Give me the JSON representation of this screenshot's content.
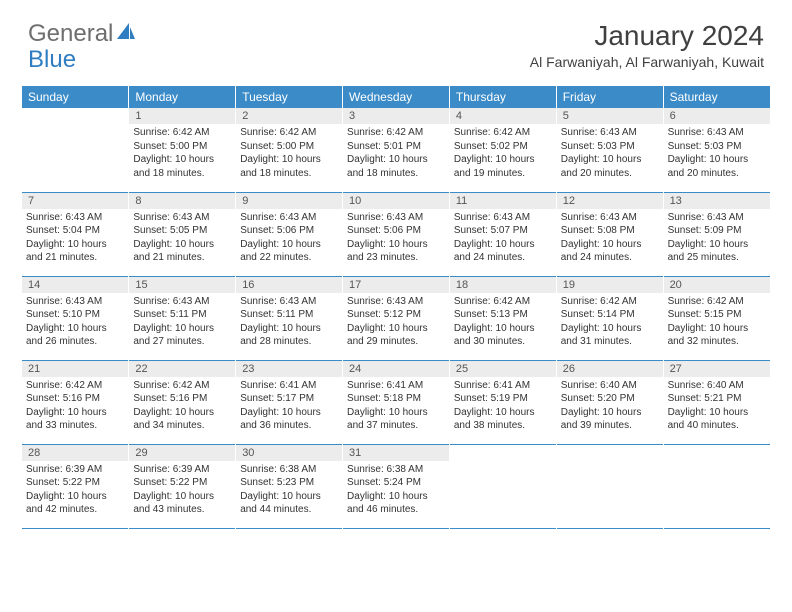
{
  "logo": {
    "part1": "General",
    "part2": "Blue"
  },
  "title": "January 2024",
  "location": "Al Farwaniyah, Al Farwaniyah, Kuwait",
  "colors": {
    "header_bg": "#3b8bc8",
    "header_text": "#ffffff",
    "daynum_bg": "#ececec",
    "daynum_text": "#555555",
    "body_text": "#333333",
    "row_border": "#3b8bc8",
    "logo_gray": "#6e6e6e",
    "logo_blue": "#2f7ec2",
    "title_color": "#404040"
  },
  "weekdays": [
    "Sunday",
    "Monday",
    "Tuesday",
    "Wednesday",
    "Thursday",
    "Friday",
    "Saturday"
  ],
  "weeks": [
    [
      null,
      {
        "n": "1",
        "sr": "6:42 AM",
        "ss": "5:00 PM",
        "dl": "10 hours and 18 minutes."
      },
      {
        "n": "2",
        "sr": "6:42 AM",
        "ss": "5:00 PM",
        "dl": "10 hours and 18 minutes."
      },
      {
        "n": "3",
        "sr": "6:42 AM",
        "ss": "5:01 PM",
        "dl": "10 hours and 18 minutes."
      },
      {
        "n": "4",
        "sr": "6:42 AM",
        "ss": "5:02 PM",
        "dl": "10 hours and 19 minutes."
      },
      {
        "n": "5",
        "sr": "6:43 AM",
        "ss": "5:03 PM",
        "dl": "10 hours and 20 minutes."
      },
      {
        "n": "6",
        "sr": "6:43 AM",
        "ss": "5:03 PM",
        "dl": "10 hours and 20 minutes."
      }
    ],
    [
      {
        "n": "7",
        "sr": "6:43 AM",
        "ss": "5:04 PM",
        "dl": "10 hours and 21 minutes."
      },
      {
        "n": "8",
        "sr": "6:43 AM",
        "ss": "5:05 PM",
        "dl": "10 hours and 21 minutes."
      },
      {
        "n": "9",
        "sr": "6:43 AM",
        "ss": "5:06 PM",
        "dl": "10 hours and 22 minutes."
      },
      {
        "n": "10",
        "sr": "6:43 AM",
        "ss": "5:06 PM",
        "dl": "10 hours and 23 minutes."
      },
      {
        "n": "11",
        "sr": "6:43 AM",
        "ss": "5:07 PM",
        "dl": "10 hours and 24 minutes."
      },
      {
        "n": "12",
        "sr": "6:43 AM",
        "ss": "5:08 PM",
        "dl": "10 hours and 24 minutes."
      },
      {
        "n": "13",
        "sr": "6:43 AM",
        "ss": "5:09 PM",
        "dl": "10 hours and 25 minutes."
      }
    ],
    [
      {
        "n": "14",
        "sr": "6:43 AM",
        "ss": "5:10 PM",
        "dl": "10 hours and 26 minutes."
      },
      {
        "n": "15",
        "sr": "6:43 AM",
        "ss": "5:11 PM",
        "dl": "10 hours and 27 minutes."
      },
      {
        "n": "16",
        "sr": "6:43 AM",
        "ss": "5:11 PM",
        "dl": "10 hours and 28 minutes."
      },
      {
        "n": "17",
        "sr": "6:43 AM",
        "ss": "5:12 PM",
        "dl": "10 hours and 29 minutes."
      },
      {
        "n": "18",
        "sr": "6:42 AM",
        "ss": "5:13 PM",
        "dl": "10 hours and 30 minutes."
      },
      {
        "n": "19",
        "sr": "6:42 AM",
        "ss": "5:14 PM",
        "dl": "10 hours and 31 minutes."
      },
      {
        "n": "20",
        "sr": "6:42 AM",
        "ss": "5:15 PM",
        "dl": "10 hours and 32 minutes."
      }
    ],
    [
      {
        "n": "21",
        "sr": "6:42 AM",
        "ss": "5:16 PM",
        "dl": "10 hours and 33 minutes."
      },
      {
        "n": "22",
        "sr": "6:42 AM",
        "ss": "5:16 PM",
        "dl": "10 hours and 34 minutes."
      },
      {
        "n": "23",
        "sr": "6:41 AM",
        "ss": "5:17 PM",
        "dl": "10 hours and 36 minutes."
      },
      {
        "n": "24",
        "sr": "6:41 AM",
        "ss": "5:18 PM",
        "dl": "10 hours and 37 minutes."
      },
      {
        "n": "25",
        "sr": "6:41 AM",
        "ss": "5:19 PM",
        "dl": "10 hours and 38 minutes."
      },
      {
        "n": "26",
        "sr": "6:40 AM",
        "ss": "5:20 PM",
        "dl": "10 hours and 39 minutes."
      },
      {
        "n": "27",
        "sr": "6:40 AM",
        "ss": "5:21 PM",
        "dl": "10 hours and 40 minutes."
      }
    ],
    [
      {
        "n": "28",
        "sr": "6:39 AM",
        "ss": "5:22 PM",
        "dl": "10 hours and 42 minutes."
      },
      {
        "n": "29",
        "sr": "6:39 AM",
        "ss": "5:22 PM",
        "dl": "10 hours and 43 minutes."
      },
      {
        "n": "30",
        "sr": "6:38 AM",
        "ss": "5:23 PM",
        "dl": "10 hours and 44 minutes."
      },
      {
        "n": "31",
        "sr": "6:38 AM",
        "ss": "5:24 PM",
        "dl": "10 hours and 46 minutes."
      },
      null,
      null,
      null
    ]
  ],
  "labels": {
    "sunrise": "Sunrise:",
    "sunset": "Sunset:",
    "daylight": "Daylight:"
  }
}
